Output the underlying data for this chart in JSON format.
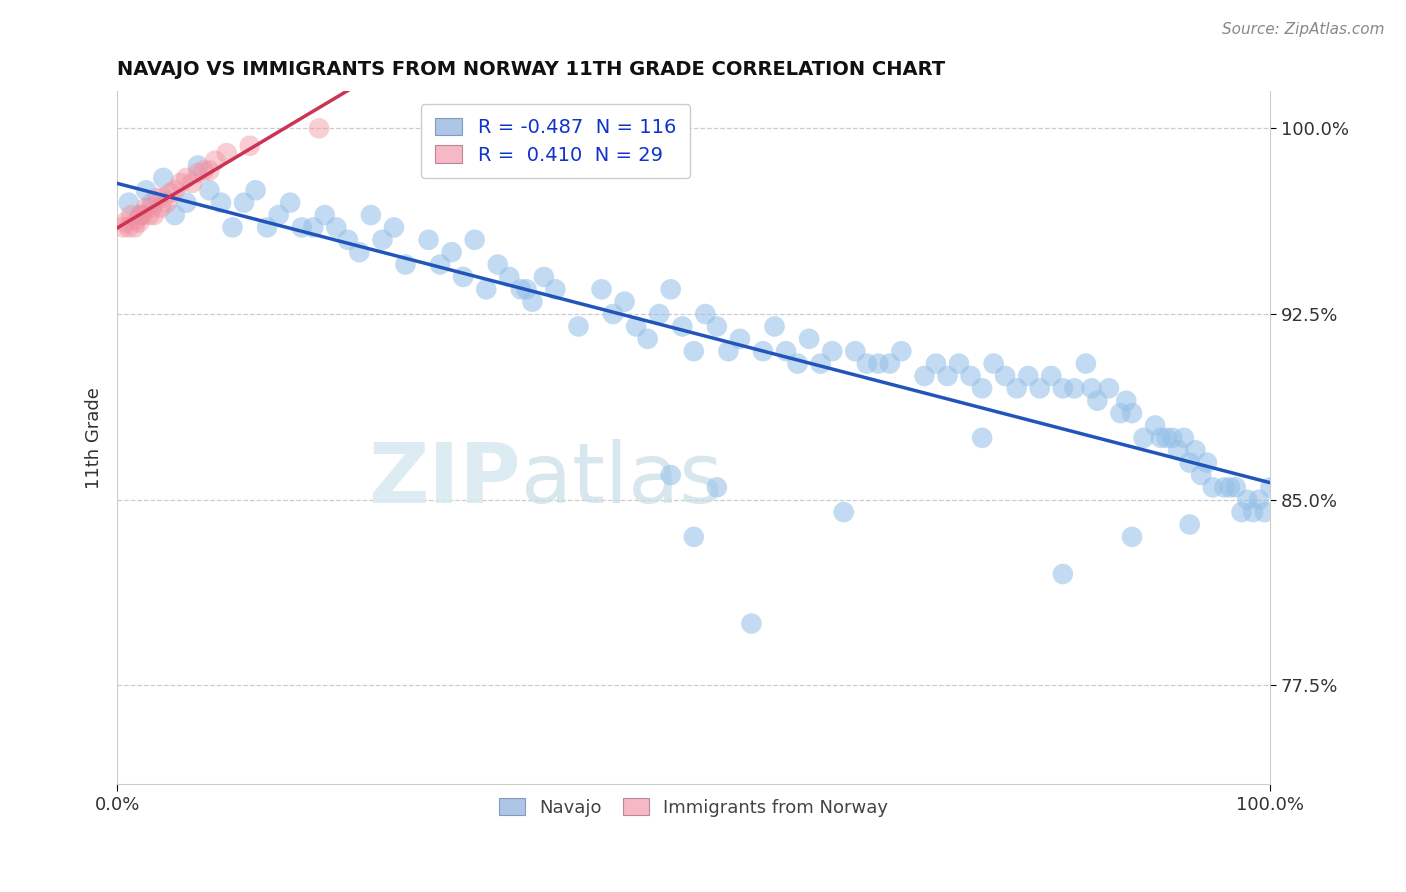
{
  "title": "NAVAJO VS IMMIGRANTS FROM NORWAY 11TH GRADE CORRELATION CHART",
  "source": "Source: ZipAtlas.com",
  "ylabel": "11th Grade",
  "xlim": [
    0.0,
    1.0
  ],
  "ylim": [
    0.735,
    1.015
  ],
  "y_ticks": [
    0.775,
    0.85,
    0.925,
    1.0
  ],
  "y_tick_labels": [
    "77.5%",
    "85.0%",
    "92.5%",
    "100.0%"
  ],
  "x_tick_labels": [
    "0.0%",
    "100.0%"
  ],
  "legend_label1": "R = -0.487  N = 116",
  "legend_label2": "R =  0.410  N = 29",
  "legend_color1": "#adc6e8",
  "legend_color2": "#f5b8c4",
  "blue_color": "#92bfe8",
  "pink_color": "#f090a0",
  "trendline_blue": "#2255bb",
  "trendline_pink": "#cc3355",
  "watermark_zip": "ZIP",
  "watermark_atlas": "atlas",
  "blue_x": [
    0.01,
    0.02,
    0.025,
    0.03,
    0.04,
    0.05,
    0.06,
    0.07,
    0.08,
    0.09,
    0.1,
    0.11,
    0.12,
    0.13,
    0.14,
    0.15,
    0.16,
    0.17,
    0.18,
    0.19,
    0.2,
    0.21,
    0.22,
    0.23,
    0.24,
    0.25,
    0.27,
    0.28,
    0.29,
    0.3,
    0.31,
    0.32,
    0.33,
    0.34,
    0.35,
    0.355,
    0.36,
    0.37,
    0.38,
    0.4,
    0.42,
    0.43,
    0.44,
    0.45,
    0.46,
    0.47,
    0.48,
    0.49,
    0.5,
    0.51,
    0.52,
    0.53,
    0.54,
    0.56,
    0.57,
    0.58,
    0.59,
    0.6,
    0.61,
    0.62,
    0.64,
    0.65,
    0.66,
    0.67,
    0.68,
    0.7,
    0.71,
    0.72,
    0.73,
    0.74,
    0.75,
    0.76,
    0.77,
    0.78,
    0.79,
    0.8,
    0.81,
    0.82,
    0.83,
    0.84,
    0.845,
    0.85,
    0.86,
    0.87,
    0.875,
    0.88,
    0.89,
    0.9,
    0.905,
    0.91,
    0.915,
    0.92,
    0.925,
    0.93,
    0.935,
    0.94,
    0.945,
    0.95,
    0.96,
    0.965,
    0.97,
    0.975,
    0.98,
    0.985,
    0.99,
    0.995,
    1.0,
    0.5,
    0.55,
    0.63,
    0.48,
    0.52,
    0.75,
    0.82,
    0.88,
    0.93
  ],
  "blue_y": [
    0.97,
    0.965,
    0.975,
    0.97,
    0.98,
    0.965,
    0.97,
    0.985,
    0.975,
    0.97,
    0.96,
    0.97,
    0.975,
    0.96,
    0.965,
    0.97,
    0.96,
    0.96,
    0.965,
    0.96,
    0.955,
    0.95,
    0.965,
    0.955,
    0.96,
    0.945,
    0.955,
    0.945,
    0.95,
    0.94,
    0.955,
    0.935,
    0.945,
    0.94,
    0.935,
    0.935,
    0.93,
    0.94,
    0.935,
    0.92,
    0.935,
    0.925,
    0.93,
    0.92,
    0.915,
    0.925,
    0.935,
    0.92,
    0.91,
    0.925,
    0.92,
    0.91,
    0.915,
    0.91,
    0.92,
    0.91,
    0.905,
    0.915,
    0.905,
    0.91,
    0.91,
    0.905,
    0.905,
    0.905,
    0.91,
    0.9,
    0.905,
    0.9,
    0.905,
    0.9,
    0.895,
    0.905,
    0.9,
    0.895,
    0.9,
    0.895,
    0.9,
    0.895,
    0.895,
    0.905,
    0.895,
    0.89,
    0.895,
    0.885,
    0.89,
    0.885,
    0.875,
    0.88,
    0.875,
    0.875,
    0.875,
    0.87,
    0.875,
    0.865,
    0.87,
    0.86,
    0.865,
    0.855,
    0.855,
    0.855,
    0.855,
    0.845,
    0.85,
    0.845,
    0.85,
    0.845,
    0.855,
    0.835,
    0.8,
    0.845,
    0.86,
    0.855,
    0.875,
    0.82,
    0.835,
    0.84
  ],
  "pink_x": [
    0.005,
    0.007,
    0.01,
    0.012,
    0.015,
    0.017,
    0.019,
    0.02,
    0.022,
    0.025,
    0.028,
    0.03,
    0.032,
    0.035,
    0.038,
    0.04,
    0.043,
    0.046,
    0.05,
    0.055,
    0.06,
    0.065,
    0.07,
    0.075,
    0.08,
    0.085,
    0.095,
    0.115,
    0.175
  ],
  "pink_y": [
    0.96,
    0.962,
    0.96,
    0.965,
    0.96,
    0.963,
    0.962,
    0.965,
    0.965,
    0.968,
    0.965,
    0.968,
    0.965,
    0.972,
    0.968,
    0.972,
    0.97,
    0.974,
    0.975,
    0.978,
    0.98,
    0.978,
    0.982,
    0.983,
    0.983,
    0.987,
    0.99,
    0.993,
    1.0
  ]
}
